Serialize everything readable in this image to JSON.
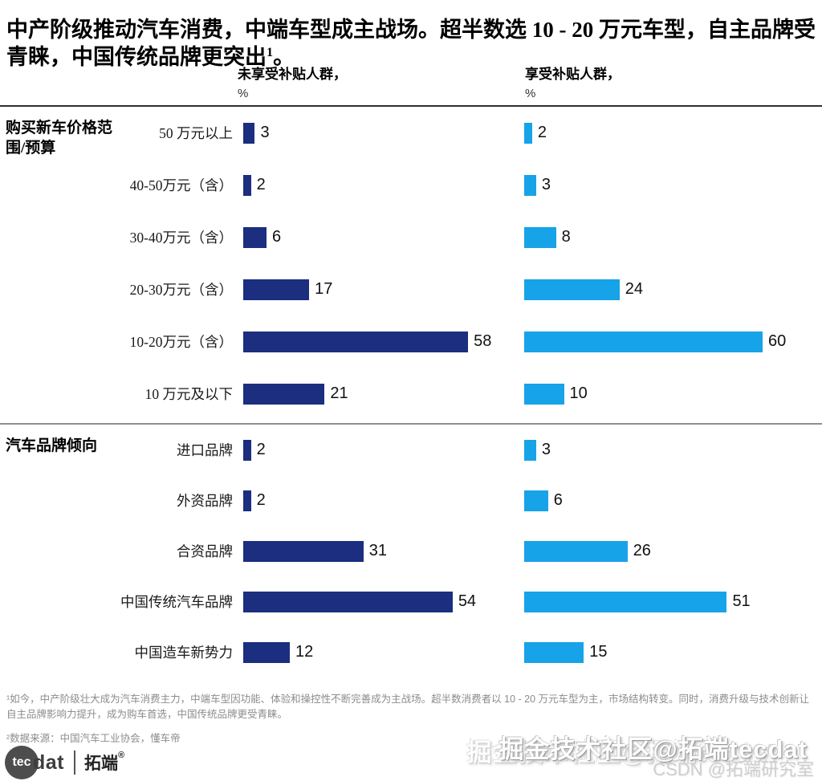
{
  "title": {
    "text": "中产阶级推动汽车消费，中端车型成主战场。超半数选 10 - 20 万元车型，自主品牌受青睐，中国传统品牌更突出",
    "superscript": "1",
    "period": "。"
  },
  "chart_data": {
    "type": "bar",
    "orientation": "horizontal",
    "unit": "%",
    "xlim": [
      0,
      62
    ],
    "legend_position": "column-headers",
    "grid": false,
    "series": [
      {
        "name": "未享受补贴人群",
        "header": "未享受补贴人群，",
        "color": "#1b2e7f"
      },
      {
        "name": "享受补贴人群",
        "header": "享受补贴人群，",
        "color": "#17a3e7"
      }
    ],
    "sections": [
      {
        "label": "购买新车价格范围/预算",
        "rows": [
          {
            "category": "50 万元以上",
            "values": [
              3,
              2
            ]
          },
          {
            "category": "40-50万元（含）",
            "values": [
              2,
              3
            ]
          },
          {
            "category": "30-40万元（含）",
            "values": [
              6,
              8
            ]
          },
          {
            "category": "20-30万元（含）",
            "values": [
              17,
              24
            ]
          },
          {
            "category": "10-20万元（含）",
            "values": [
              58,
              60
            ]
          },
          {
            "category": "10 万元及以下",
            "values": [
              21,
              10
            ]
          }
        ]
      },
      {
        "label": "汽车品牌倾向",
        "rows": [
          {
            "category": "进口品牌",
            "values": [
              2,
              3
            ]
          },
          {
            "category": "外资品牌",
            "values": [
              2,
              6
            ]
          },
          {
            "category": "合资品牌",
            "values": [
              31,
              26
            ]
          },
          {
            "category": "中国传统汽车品牌",
            "values": [
              54,
              51
            ]
          },
          {
            "category": "中国造车新势力",
            "values": [
              12,
              15
            ]
          }
        ]
      }
    ]
  },
  "footnotes": [
    "¹如今，中产阶级壮大成为汽车消费主力，中端车型因功能、体验和操控性不断完善成为主战场。超半数消费者以 10 - 20 万元车型为主，市场结构转变。同时，消费升级与技术创新让自主品牌影响力提升，成为购车首选，中国传统品牌更受青睐。",
    "²数据来源：中国汽车工业协会，懂车帝"
  ],
  "logo": {
    "circle_text": "tec",
    "wordmark_rest": "dat",
    "cn_name": "拓端",
    "registered": "®"
  },
  "watermarks": [
    "掘金技术社区@拓端tecdat",
    "CSDN @拓端研究室"
  ]
}
